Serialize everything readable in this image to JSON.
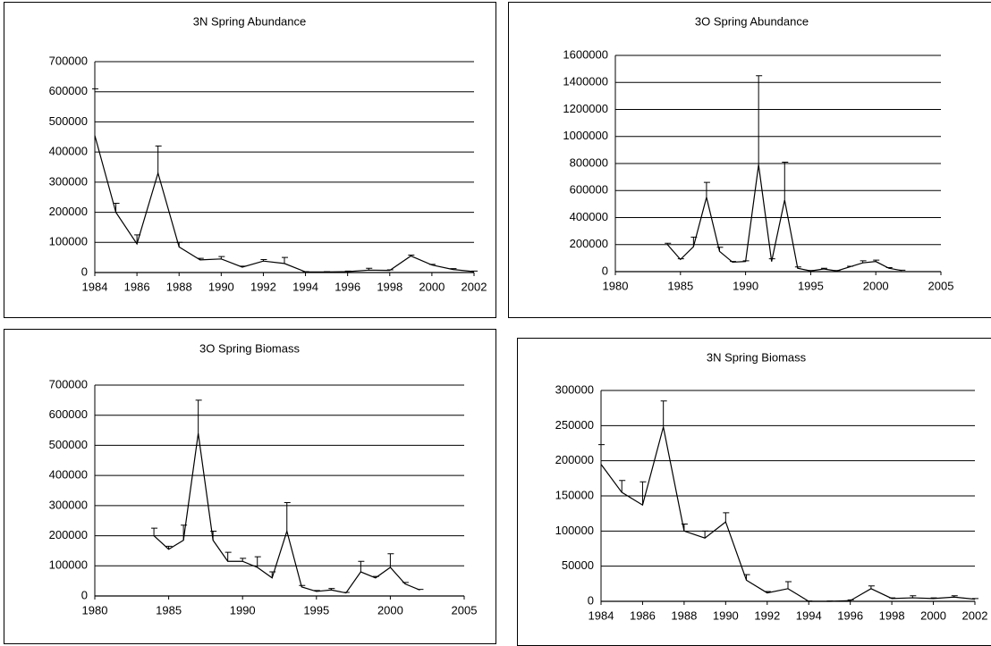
{
  "chart_data": [
    {
      "type": "line",
      "title": "3N Spring Abundance",
      "color": "#000000",
      "grid": true,
      "x": [
        1984,
        1985,
        1986,
        1987,
        1988,
        1989,
        1990,
        1991,
        1992,
        1993,
        1994,
        1995,
        1996,
        1997,
        1998,
        1999,
        2000,
        2001,
        2002
      ],
      "values": [
        455000,
        200000,
        95000,
        330000,
        85000,
        42000,
        45000,
        18000,
        38000,
        30000,
        2000,
        2000,
        3000,
        8000,
        7000,
        55000,
        25000,
        10000,
        3000
      ],
      "errors": [
        155000,
        30000,
        30000,
        90000,
        15000,
        5000,
        8000,
        3000,
        5000,
        20000,
        1000,
        1000,
        2000,
        6000,
        2000,
        3000,
        2000,
        3000,
        2000
      ],
      "xlim": [
        1984,
        2002
      ],
      "xticks": [
        1984,
        1986,
        1988,
        1990,
        1992,
        1994,
        1996,
        1998,
        2000,
        2002
      ],
      "ylim": [
        0,
        700000
      ],
      "yticks": [
        0,
        100000,
        200000,
        300000,
        400000,
        500000,
        600000,
        700000
      ]
    },
    {
      "type": "line",
      "title": "3O Spring Abundance",
      "color": "#000000",
      "grid": true,
      "x": [
        1984,
        1985,
        1986,
        1987,
        1988,
        1989,
        1990,
        1991,
        1992,
        1993,
        1994,
        1995,
        1996,
        1997,
        1998,
        1999,
        2000,
        2001,
        2002
      ],
      "values": [
        200000,
        90000,
        185000,
        550000,
        150000,
        70000,
        75000,
        790000,
        75000,
        530000,
        25000,
        5000,
        20000,
        5000,
        35000,
        65000,
        75000,
        25000,
        8000
      ],
      "errors": [
        10000,
        5000,
        70000,
        110000,
        30000,
        5000,
        5000,
        660000,
        20000,
        280000,
        10000,
        3000,
        5000,
        3000,
        5000,
        15000,
        10000,
        5000,
        3000
      ],
      "xlim": [
        1980,
        2005
      ],
      "xticks": [
        1980,
        1985,
        1990,
        1995,
        2000,
        2005
      ],
      "ylim": [
        0,
        1600000
      ],
      "yticks": [
        0,
        200000,
        400000,
        600000,
        800000,
        1000000,
        1200000,
        1400000,
        1600000
      ]
    },
    {
      "type": "line",
      "title": "3O Spring Biomass",
      "color": "#000000",
      "grid": true,
      "x": [
        1984,
        1985,
        1986,
        1987,
        1988,
        1989,
        1990,
        1991,
        1992,
        1993,
        1994,
        1995,
        1996,
        1997,
        1998,
        1999,
        2000,
        2001,
        2002
      ],
      "values": [
        200000,
        155000,
        185000,
        540000,
        185000,
        115000,
        115000,
        95000,
        60000,
        215000,
        30000,
        15000,
        20000,
        10000,
        80000,
        60000,
        95000,
        40000,
        20000
      ],
      "errors": [
        25000,
        10000,
        50000,
        110000,
        30000,
        30000,
        10000,
        35000,
        20000,
        95000,
        5000,
        3000,
        5000,
        2000,
        35000,
        5000,
        45000,
        5000,
        2000
      ],
      "xlim": [
        1980,
        2005
      ],
      "xticks": [
        1980,
        1985,
        1990,
        1995,
        2000,
        2005
      ],
      "ylim": [
        0,
        700000
      ],
      "yticks": [
        0,
        100000,
        200000,
        300000,
        400000,
        500000,
        600000,
        700000
      ]
    },
    {
      "type": "line",
      "title": "3N Spring Biomass",
      "color": "#000000",
      "grid": true,
      "x": [
        1984,
        1985,
        1986,
        1987,
        1988,
        1989,
        1990,
        1991,
        1992,
        1993,
        1994,
        1995,
        1996,
        1997,
        1998,
        1999,
        2000,
        2001,
        2002
      ],
      "values": [
        195000,
        155000,
        137000,
        248000,
        100000,
        90000,
        113000,
        30000,
        12000,
        18000,
        0,
        0,
        1000,
        18000,
        4000,
        5000,
        4000,
        6000,
        3000
      ],
      "errors": [
        28000,
        17000,
        33000,
        37000,
        10000,
        10000,
        13000,
        8000,
        2000,
        10000,
        500,
        500,
        1000,
        4000,
        1000,
        3000,
        1000,
        2000,
        1000
      ],
      "xlim": [
        1984,
        2002
      ],
      "xticks": [
        1984,
        1986,
        1988,
        1990,
        1992,
        1994,
        1996,
        1998,
        2000,
        2002
      ],
      "ylim": [
        0,
        300000
      ],
      "yticks": [
        0,
        50000,
        100000,
        150000,
        200000,
        250000,
        300000
      ]
    }
  ]
}
